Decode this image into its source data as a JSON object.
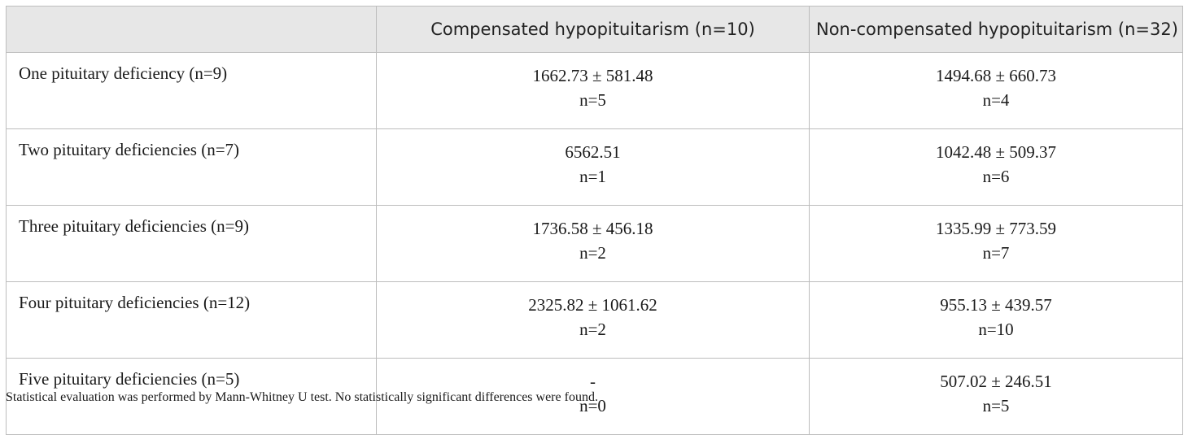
{
  "table": {
    "headers": [
      "",
      "Compensated hypopituitarism (n=10)",
      "Non-compensated hypopituitarism (n=32)"
    ],
    "rows": [
      {
        "label": "One pituitary deficiency (n=9)",
        "compensated": {
          "value": "1662.73 ± 581.48",
          "n": "n=5"
        },
        "noncompensated": {
          "value": "1494.68 ± 660.73",
          "n": "n=4"
        }
      },
      {
        "label": "Two pituitary deficiencies (n=7)",
        "compensated": {
          "value": "6562.51",
          "n": "n=1"
        },
        "noncompensated": {
          "value": "1042.48 ± 509.37",
          "n": "n=6"
        }
      },
      {
        "label": "Three pituitary deficiencies (n=9)",
        "compensated": {
          "value": "1736.58 ± 456.18",
          "n": "n=2"
        },
        "noncompensated": {
          "value": "1335.99 ± 773.59",
          "n": "n=7"
        }
      },
      {
        "label": "Four pituitary deficiencies (n=12)",
        "compensated": {
          "value": "2325.82 ± 1061.62",
          "n": "n=2"
        },
        "noncompensated": {
          "value": "955.13 ± 439.57",
          "n": "n=10"
        }
      },
      {
        "label": "Five pituitary deficiencies (n=5)",
        "compensated": {
          "value": "-",
          "n": "n=0"
        },
        "noncompensated": {
          "value": "507.02 ± 246.51",
          "n": "n=5"
        }
      }
    ]
  },
  "footnote": "Statistical evaluation was performed by Mann-Whitney U test. No statistically significant differences were found."
}
